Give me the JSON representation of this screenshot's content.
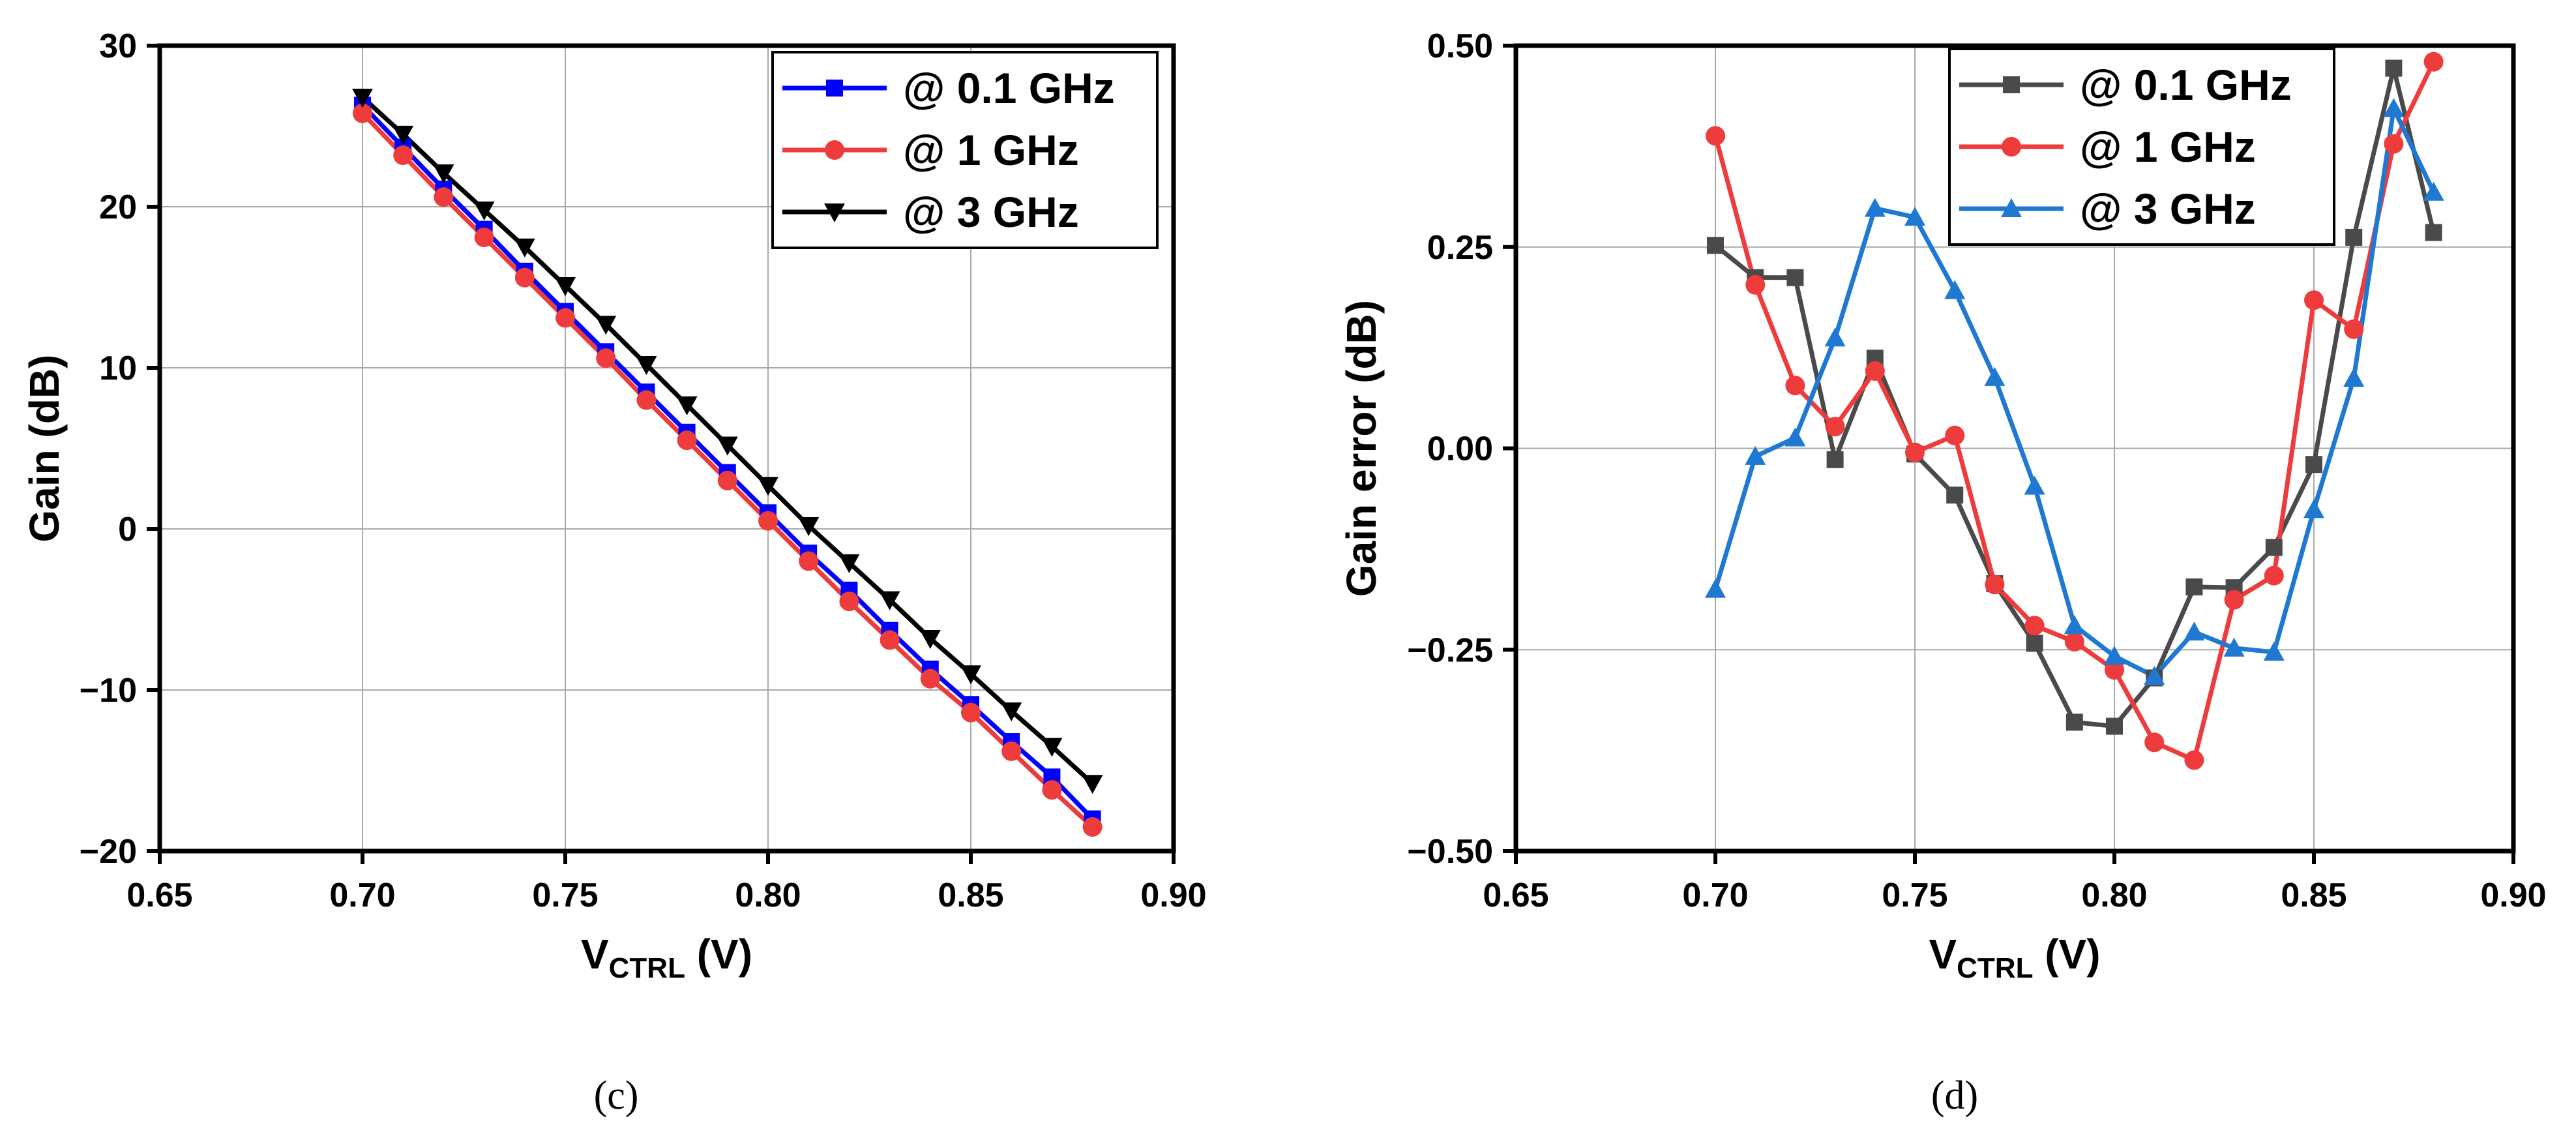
{
  "chart_data": [
    {
      "id": "c",
      "type": "line",
      "caption": "(c)",
      "title": "",
      "xlabel_main": "V",
      "xlabel_sub": "CTRL",
      "xlabel_unit": " (V)",
      "ylabel": "Gain (dB)",
      "xlim": [
        0.65,
        0.9
      ],
      "ylim": [
        -20,
        30
      ],
      "xticks": [
        0.65,
        0.7,
        0.75,
        0.8,
        0.85,
        0.9
      ],
      "xtick_labels": [
        "0.65",
        "0.70",
        "0.75",
        "0.80",
        "0.85",
        "0.90"
      ],
      "yticks": [
        -20,
        -10,
        0,
        10,
        20,
        30
      ],
      "ytick_labels": [
        "−20",
        "−10",
        "0",
        "10",
        "20",
        "30"
      ],
      "grid": true,
      "legend_position": "top-right",
      "x": [
        0.7,
        0.71,
        0.72,
        0.73,
        0.74,
        0.75,
        0.76,
        0.77,
        0.78,
        0.79,
        0.8,
        0.81,
        0.82,
        0.83,
        0.84,
        0.85,
        0.86,
        0.87,
        0.88
      ],
      "series": [
        {
          "name": "@ 0.1 GHz",
          "color": "#0000ff",
          "marker": "square",
          "values": [
            26.3,
            23.7,
            21.1,
            18.6,
            16.0,
            13.5,
            11.0,
            8.5,
            6.0,
            3.5,
            1.0,
            -1.5,
            -3.8,
            -6.3,
            -8.7,
            -10.9,
            -13.2,
            -15.4,
            -18.0
          ]
        },
        {
          "name": "@ 1 GHz",
          "color": "#ee3b3b",
          "marker": "circle",
          "values": [
            25.8,
            23.2,
            20.6,
            18.1,
            15.6,
            13.1,
            10.6,
            8.0,
            5.5,
            3.0,
            0.5,
            -2.0,
            -4.5,
            -6.9,
            -9.3,
            -11.4,
            -13.8,
            -16.2,
            -18.5
          ]
        },
        {
          "name": "@ 3 GHz",
          "color": "#000000",
          "marker": "triangle-down",
          "values": [
            26.8,
            24.5,
            22.1,
            19.8,
            17.5,
            15.1,
            12.7,
            10.2,
            7.7,
            5.2,
            2.7,
            0.2,
            -2.1,
            -4.4,
            -6.8,
            -9.0,
            -11.3,
            -13.5,
            -15.8
          ]
        }
      ]
    },
    {
      "id": "d",
      "type": "line",
      "caption": "(d)",
      "title": "",
      "xlabel_main": "V",
      "xlabel_sub": "CTRL",
      "xlabel_unit": " (V)",
      "ylabel": "Gain error (dB)",
      "xlim": [
        0.65,
        0.9
      ],
      "ylim": [
        -0.5,
        0.5
      ],
      "xticks": [
        0.65,
        0.7,
        0.75,
        0.8,
        0.85,
        0.9
      ],
      "xtick_labels": [
        "0.65",
        "0.70",
        "0.75",
        "0.80",
        "0.85",
        "0.90"
      ],
      "yticks": [
        -0.5,
        -0.25,
        0.0,
        0.25,
        0.5
      ],
      "ytick_labels": [
        "−0.50",
        "−0.25",
        "0.00",
        "0.25",
        "0.50"
      ],
      "grid": true,
      "legend_position": "top-center",
      "x": [
        0.7,
        0.71,
        0.72,
        0.73,
        0.74,
        0.75,
        0.76,
        0.77,
        0.78,
        0.79,
        0.8,
        0.81,
        0.82,
        0.83,
        0.84,
        0.85,
        0.86,
        0.87,
        0.88
      ],
      "series": [
        {
          "name": "@ 0.1 GHz",
          "color": "#4a4a4a",
          "marker": "square",
          "values": [
            0.252,
            0.212,
            0.212,
            -0.014,
            0.112,
            -0.007,
            -0.058,
            -0.168,
            -0.242,
            -0.34,
            -0.345,
            -0.285,
            -0.172,
            -0.173,
            -0.123,
            -0.02,
            0.262,
            0.472,
            0.268
          ]
        },
        {
          "name": "@ 1 GHz",
          "color": "#ee3b3b",
          "marker": "circle",
          "values": [
            0.388,
            0.203,
            0.078,
            0.027,
            0.096,
            -0.005,
            0.016,
            -0.169,
            -0.22,
            -0.24,
            -0.275,
            -0.365,
            -0.387,
            -0.188,
            -0.158,
            0.184,
            0.148,
            0.378,
            0.48
          ]
        },
        {
          "name": "@ 3 GHz",
          "color": "#1f78d1",
          "marker": "triangle-up",
          "values": [
            -0.175,
            -0.01,
            0.013,
            0.137,
            0.298,
            0.287,
            0.196,
            0.088,
            -0.047,
            -0.22,
            -0.258,
            -0.283,
            -0.228,
            -0.248,
            -0.253,
            -0.076,
            0.087,
            0.422,
            0.318
          ]
        }
      ]
    }
  ]
}
